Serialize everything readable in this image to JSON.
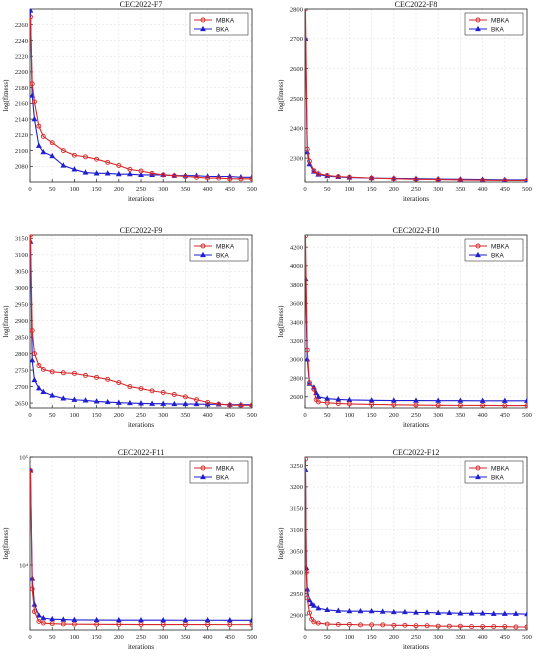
{
  "colors": {
    "MBKA": "#d62728",
    "BKA": "#1f1fd0",
    "grid": "#e3e3e3",
    "axis": "#262626"
  },
  "chart_data": [
    {
      "type": "line",
      "title": "CEC2022-F7",
      "xlabel": "iterations",
      "ylabel": "log(fitness)",
      "xlim": [
        0,
        500
      ],
      "ylim": [
        2060,
        2280
      ],
      "yscale": "linear",
      "xticks": [
        0,
        50,
        100,
        150,
        200,
        250,
        300,
        350,
        400,
        450,
        500
      ],
      "yticks": [
        2080,
        2100,
        2120,
        2140,
        2160,
        2180,
        2200,
        2220,
        2240,
        2260
      ],
      "ytick_labels": [
        "2080",
        "2100",
        "2120",
        "2140",
        "2160",
        "2180",
        "2200",
        "2220",
        "2240",
        "2260"
      ],
      "grid": true,
      "legend": "top-right",
      "series": [
        {
          "name": "MBKA",
          "x": [
            1,
            5,
            10,
            20,
            30,
            50,
            75,
            100,
            125,
            150,
            175,
            200,
            225,
            250,
            275,
            300,
            325,
            350,
            375,
            400,
            425,
            450,
            475,
            500
          ],
          "y": [
            2270,
            2185,
            2162,
            2131,
            2118,
            2110,
            2100,
            2094,
            2092,
            2089,
            2085,
            2081,
            2076,
            2074,
            2071,
            2069,
            2068,
            2067,
            2066,
            2065,
            2065,
            2064,
            2064,
            2064
          ]
        },
        {
          "name": "BKA",
          "x": [
            1,
            5,
            10,
            20,
            30,
            50,
            75,
            100,
            125,
            150,
            175,
            200,
            225,
            250,
            275,
            300,
            325,
            350,
            375,
            400,
            425,
            450,
            475,
            500
          ],
          "y": [
            2278,
            2170,
            2140,
            2106,
            2098,
            2093,
            2081,
            2076,
            2072,
            2071,
            2071,
            2070,
            2070,
            2069,
            2069,
            2069,
            2068,
            2068,
            2068,
            2067,
            2067,
            2067,
            2066,
            2066
          ]
        }
      ]
    },
    {
      "type": "line",
      "title": "CEC2022-F8",
      "xlabel": "iterations",
      "ylabel": "log(fitness)",
      "xlim": [
        0,
        500
      ],
      "ylim": [
        2220,
        2800
      ],
      "yscale": "linear",
      "xticks": [
        0,
        50,
        100,
        150,
        200,
        250,
        300,
        350,
        400,
        450,
        500
      ],
      "yticks": [
        2300,
        2400,
        2500,
        2600,
        2700,
        2800
      ],
      "ytick_labels": [
        "2300",
        "2400",
        "2500",
        "2600",
        "2700",
        "2800"
      ],
      "grid": true,
      "legend": "top-right",
      "series": [
        {
          "name": "MBKA",
          "x": [
            1,
            5,
            10,
            20,
            30,
            50,
            75,
            100,
            150,
            200,
            250,
            300,
            350,
            400,
            450,
            500
          ],
          "y": [
            2800,
            2330,
            2290,
            2258,
            2248,
            2242,
            2238,
            2236,
            2233,
            2231,
            2229,
            2228,
            2227,
            2226,
            2225,
            2225
          ]
        },
        {
          "name": "BKA",
          "x": [
            1,
            5,
            10,
            20,
            30,
            50,
            75,
            100,
            150,
            200,
            250,
            300,
            350,
            400,
            450,
            500
          ],
          "y": [
            2700,
            2320,
            2280,
            2255,
            2245,
            2240,
            2237,
            2235,
            2233,
            2232,
            2231,
            2230,
            2229,
            2228,
            2227,
            2227
          ]
        }
      ]
    },
    {
      "type": "line",
      "title": "CEC2022-F9",
      "xlabel": "iterations",
      "ylabel": "log(fitness)",
      "xlim": [
        0,
        500
      ],
      "ylim": [
        2635,
        3160
      ],
      "yscale": "linear",
      "xticks": [
        0,
        50,
        100,
        150,
        200,
        250,
        300,
        350,
        400,
        450,
        500
      ],
      "yticks": [
        2650,
        2700,
        2750,
        2800,
        2850,
        2900,
        2950,
        3000,
        3050,
        3100,
        3150
      ],
      "ytick_labels": [
        "2650",
        "2700",
        "2750",
        "2800",
        "2850",
        "2900",
        "2950",
        "3000",
        "3050",
        "3100",
        "3150"
      ],
      "grid": true,
      "legend": "top-right",
      "series": [
        {
          "name": "MBKA",
          "x": [
            1,
            5,
            10,
            20,
            30,
            50,
            75,
            100,
            125,
            150,
            175,
            200,
            225,
            250,
            275,
            300,
            325,
            350,
            375,
            400,
            425,
            450,
            475,
            500
          ],
          "y": [
            3160,
            2870,
            2800,
            2764,
            2752,
            2745,
            2742,
            2740,
            2734,
            2728,
            2722,
            2712,
            2700,
            2694,
            2687,
            2682,
            2676,
            2669,
            2660,
            2652,
            2647,
            2644,
            2643,
            2643
          ]
        },
        {
          "name": "BKA",
          "x": [
            1,
            5,
            10,
            20,
            30,
            50,
            75,
            100,
            125,
            150,
            175,
            200,
            225,
            250,
            275,
            300,
            325,
            350,
            375,
            400,
            425,
            450,
            475,
            500
          ],
          "y": [
            3140,
            2780,
            2720,
            2695,
            2684,
            2673,
            2664,
            2660,
            2658,
            2655,
            2653,
            2651,
            2650,
            2649,
            2648,
            2648,
            2647,
            2647,
            2647,
            2646,
            2646,
            2645,
            2645,
            2645
          ]
        }
      ]
    },
    {
      "type": "line",
      "title": "CEC2022-F10",
      "xlabel": "iterations",
      "ylabel": "log(fitness)",
      "xlim": [
        0,
        500
      ],
      "ylim": [
        2480,
        4330
      ],
      "yscale": "linear",
      "xticks": [
        0,
        50,
        100,
        150,
        200,
        250,
        300,
        350,
        400,
        450,
        500
      ],
      "yticks": [
        2600,
        2800,
        3000,
        3200,
        3400,
        3600,
        3800,
        4000,
        4200
      ],
      "ytick_labels": [
        "2600",
        "2800",
        "3000",
        "3200",
        "3400",
        "3600",
        "3800",
        "4000",
        "4200"
      ],
      "grid": true,
      "legend": "top-right",
      "series": [
        {
          "name": "MBKA",
          "x": [
            1,
            5,
            10,
            20,
            25,
            30,
            50,
            75,
            100,
            150,
            200,
            250,
            300,
            350,
            400,
            450,
            500
          ],
          "y": [
            4320,
            3100,
            2750,
            2680,
            2570,
            2545,
            2535,
            2528,
            2524,
            2518,
            2514,
            2511,
            2509,
            2508,
            2507,
            2506,
            2506
          ]
        },
        {
          "name": "BKA",
          "x": [
            1,
            5,
            10,
            20,
            25,
            30,
            50,
            75,
            100,
            150,
            200,
            250,
            300,
            350,
            400,
            450,
            500
          ],
          "y": [
            3860,
            3000,
            2740,
            2700,
            2640,
            2600,
            2580,
            2572,
            2566,
            2562,
            2560,
            2559,
            2558,
            2558,
            2557,
            2557,
            2557
          ]
        }
      ]
    },
    {
      "type": "line",
      "title": "CEC2022-F11",
      "xlabel": "iterations",
      "ylabel": "log(fitness)",
      "xlim": [
        0,
        500
      ],
      "ylim": [
        2500,
        100000
      ],
      "yscale": "log",
      "xticks": [
        0,
        50,
        100,
        150,
        200,
        250,
        300,
        350,
        400,
        450,
        500
      ],
      "yticks": [
        10000,
        100000
      ],
      "ytick_labels": [
        "10⁴",
        "10⁵"
      ],
      "grid": true,
      "legend": "top-right",
      "series": [
        {
          "name": "MBKA",
          "x": [
            1,
            5,
            10,
            20,
            30,
            50,
            75,
            100,
            150,
            200,
            250,
            300,
            350,
            400,
            450,
            500
          ],
          "y": [
            75000,
            6000,
            3700,
            3000,
            2900,
            2860,
            2840,
            2830,
            2820,
            2815,
            2810,
            2808,
            2806,
            2805,
            2804,
            2804
          ]
        },
        {
          "name": "BKA",
          "x": [
            1,
            5,
            10,
            20,
            30,
            50,
            75,
            100,
            150,
            200,
            250,
            300,
            350,
            400,
            450,
            500
          ],
          "y": [
            75000,
            7500,
            4300,
            3400,
            3220,
            3150,
            3120,
            3100,
            3090,
            3085,
            3082,
            3080,
            3078,
            3077,
            3076,
            3076
          ]
        }
      ]
    },
    {
      "type": "line",
      "title": "CEC2022-F12",
      "xlabel": "iterations",
      "ylabel": "log(fitness)",
      "xlim": [
        0,
        500
      ],
      "ylim": [
        2865,
        3270
      ],
      "yscale": "linear",
      "xticks": [
        0,
        50,
        100,
        150,
        200,
        250,
        300,
        350,
        400,
        450,
        500
      ],
      "yticks": [
        2900,
        2950,
        3000,
        3050,
        3100,
        3150,
        3200,
        3250
      ],
      "ytick_labels": [
        "2900",
        "2950",
        "3000",
        "3050",
        "3100",
        "3150",
        "3200",
        "3250"
      ],
      "grid": true,
      "legend": "top-right",
      "series": [
        {
          "name": "MBKA",
          "x": [
            1,
            3,
            5,
            10,
            15,
            20,
            30,
            50,
            75,
            100,
            125,
            150,
            175,
            200,
            225,
            250,
            275,
            300,
            325,
            350,
            375,
            400,
            425,
            450,
            475,
            500
          ],
          "y": [
            3265,
            3000,
            2940,
            2905,
            2890,
            2884,
            2881,
            2879,
            2878,
            2878,
            2877,
            2877,
            2877,
            2876,
            2876,
            2875,
            2875,
            2874,
            2874,
            2874,
            2873,
            2873,
            2873,
            2873,
            2872,
            2872
          ]
        },
        {
          "name": "BKA",
          "x": [
            1,
            3,
            5,
            10,
            15,
            20,
            30,
            50,
            75,
            100,
            125,
            150,
            175,
            200,
            225,
            250,
            275,
            300,
            325,
            350,
            375,
            400,
            425,
            450,
            475,
            500
          ],
          "y": [
            3240,
            3010,
            2960,
            2935,
            2926,
            2922,
            2916,
            2912,
            2910,
            2909,
            2909,
            2909,
            2908,
            2907,
            2907,
            2906,
            2906,
            2905,
            2905,
            2904,
            2904,
            2904,
            2903,
            2903,
            2903,
            2902
          ]
        }
      ]
    }
  ]
}
